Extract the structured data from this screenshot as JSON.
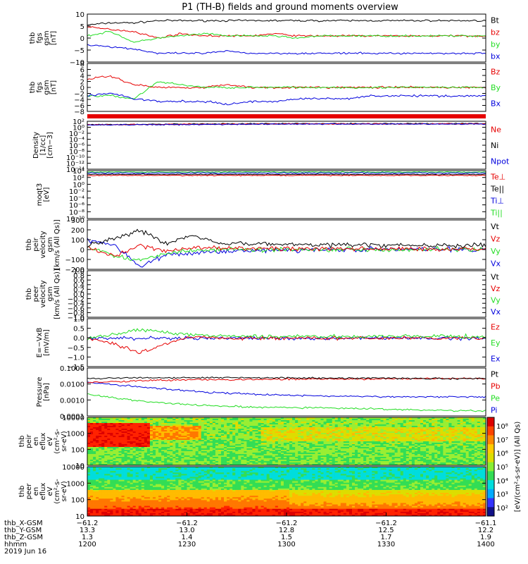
{
  "title": "P1 (TH-B) fields and ground moments overview",
  "colors": {
    "black": "#000000",
    "red": "#e60000",
    "green": "#22dd22",
    "blue": "#0000dd"
  },
  "chart_data": [
    {
      "type": "line",
      "ylabel": [
        "thb",
        "fgs",
        "gsm",
        "[nT]"
      ],
      "yticks": [
        "10",
        "5",
        "0",
        "−5",
        "−10"
      ],
      "ylim": [
        -11,
        11
      ],
      "series": [
        {
          "name": "Bt",
          "color": "black",
          "values": [
            6,
            7,
            7,
            8,
            8,
            8,
            8,
            8,
            8,
            8,
            8,
            8,
            8,
            8,
            8,
            8,
            8,
            8
          ]
        },
        {
          "name": "bz",
          "color": "red",
          "values": [
            5,
            4,
            3,
            0,
            2,
            1,
            1,
            1,
            2,
            1,
            1,
            1,
            1,
            1,
            1,
            1,
            1,
            1
          ]
        },
        {
          "name": "by",
          "color": "green",
          "values": [
            1,
            3,
            -2,
            0,
            1,
            2,
            1,
            1,
            1,
            0,
            1,
            1,
            1,
            1,
            1,
            1,
            1,
            1
          ]
        },
        {
          "name": "bx",
          "color": "blue",
          "values": [
            -3,
            -4,
            -5,
            -7,
            -7,
            -7,
            -6,
            -7,
            -7,
            -7,
            -7,
            -7,
            -7,
            -7,
            -7,
            -7,
            -7,
            -7
          ]
        }
      ]
    },
    {
      "type": "line",
      "ylabel": [
        "thb",
        "fgs",
        "gsm",
        "[nT]"
      ],
      "yticks": [
        "8",
        "6",
        "4",
        "2",
        "0",
        "−2",
        "−4",
        "−6",
        "−8"
      ],
      "ylim": [
        -8.5,
        8.5
      ],
      "series": [
        {
          "name": "Bz",
          "color": "red",
          "values": [
            3,
            4,
            1,
            0,
            0,
            0,
            1,
            0,
            0,
            0,
            0,
            0,
            0,
            0,
            0,
            0,
            0,
            0
          ]
        },
        {
          "name": "By",
          "color": "green",
          "values": [
            -3,
            -3,
            -4,
            2,
            1,
            0,
            0,
            0,
            0,
            0,
            0,
            0,
            0,
            0,
            0,
            0,
            0,
            0
          ]
        },
        {
          "name": "Bx",
          "color": "blue",
          "values": [
            -3,
            -2,
            -4,
            -5,
            -5,
            -5,
            -6,
            -5,
            -5,
            -4,
            -4,
            -4,
            -3,
            -3,
            -3,
            -3,
            -3,
            -3
          ]
        }
      ]
    },
    {
      "type": "line",
      "ylabel": [
        "Density",
        "[1/cc]",
        "[cm−3]"
      ],
      "yticks": [
        "10²",
        "10⁰",
        "10⁻²",
        "10⁻⁴",
        "10⁻⁶",
        "10⁻⁸",
        "10⁻¹⁰",
        "10⁻¹²",
        "10⁻¹⁴"
      ],
      "log": true,
      "series": [
        {
          "name": "Ne",
          "color": "red"
        },
        {
          "name": "Ni",
          "color": "black"
        },
        {
          "name": "Npot",
          "color": "blue"
        }
      ]
    },
    {
      "type": "line",
      "ylabel": [
        "moqt3",
        "[eV]"
      ],
      "yticks": [
        "10⁴",
        "10²",
        "10⁰",
        "10⁻²",
        "10⁻⁴",
        "10⁻⁶",
        "10⁻⁸",
        "10⁻¹⁰"
      ],
      "log": true,
      "series": [
        {
          "name": "Te⊥",
          "color": "red"
        },
        {
          "name": "Te||",
          "color": "black"
        },
        {
          "name": "Ti⊥",
          "color": "blue"
        },
        {
          "name": "Ti||",
          "color": "green"
        }
      ]
    },
    {
      "type": "line",
      "ylabel": [
        "thb",
        "peir",
        "velocity",
        "gsm",
        "[km/s (All Qs)]"
      ],
      "yticks": [
        "300",
        "200",
        "100",
        "0",
        "−100",
        "−200"
      ],
      "ylim": [
        -210,
        310
      ],
      "series": [
        {
          "name": "Vt",
          "color": "black"
        },
        {
          "name": "Vz",
          "color": "red"
        },
        {
          "name": "Vy",
          "color": "green"
        },
        {
          "name": "Vx",
          "color": "blue"
        }
      ]
    },
    {
      "type": "line",
      "ylabel": [
        "thb",
        "peer",
        "velocity",
        "gsm",
        "[km/s (All Qs)]"
      ],
      "yticks": [
        "1.0",
        "0.8",
        "0.6",
        "0.4",
        "0.2",
        "0.0",
        "−0.2",
        "−0.4",
        "−0.6",
        "−0.8",
        "−1.0"
      ],
      "series": [
        {
          "name": "Vt",
          "color": "black"
        },
        {
          "name": "Vz",
          "color": "red"
        },
        {
          "name": "Vy",
          "color": "green"
        },
        {
          "name": "Vx",
          "color": "blue"
        }
      ]
    },
    {
      "type": "line",
      "ylabel": [
        "E=−VxB",
        "[mV/m]"
      ],
      "yticks": [
        "1.0",
        "0.5",
        "0.0",
        "−0.5",
        "−1.0",
        "−1.5"
      ],
      "series": [
        {
          "name": "Ez",
          "color": "red"
        },
        {
          "name": "Ey",
          "color": "green"
        },
        {
          "name": "Ex",
          "color": "blue"
        }
      ]
    },
    {
      "type": "line",
      "ylabel": [
        "Pressure",
        "[nPa]"
      ],
      "yticks": [
        "0.1000",
        "0.0100",
        "0.0010",
        "0.0001"
      ],
      "log": true,
      "series": [
        {
          "name": "Pt",
          "color": "black"
        },
        {
          "name": "Pb",
          "color": "red"
        },
        {
          "name": "Pe",
          "color": "green"
        },
        {
          "name": "Pi",
          "color": "blue"
        }
      ]
    },
    {
      "type": "heatmap",
      "ylabel": [
        "thb",
        "peir",
        "en",
        "eflux",
        "eV",
        "(cm²-s-",
        "sr-eV)"
      ],
      "yticks": [
        "10000",
        "1000",
        "100",
        "10"
      ]
    },
    {
      "type": "heatmap",
      "ylabel": [
        "thb",
        "peer",
        "en",
        "eflux",
        "eV",
        "(cm²-s-",
        "sr-eV)"
      ],
      "yticks": [
        "10000",
        "1000",
        "100",
        "10"
      ]
    }
  ],
  "colorbar": {
    "ticks": [
      "10⁸",
      "10⁷",
      "10⁶",
      "10⁵",
      "10⁴",
      "10³",
      "10²"
    ],
    "label": "[eV/(cm²-s-sr-eV)] (All Qs)"
  },
  "xaxis": {
    "row_labels": [
      "thb_X-GSM",
      "thb_Y-GSM",
      "thb_Z-GSM",
      "hhmm",
      "2019 Jun 16"
    ],
    "columns": [
      [
        "−61.2",
        "13.3",
        "1.3",
        "1200"
      ],
      [
        "−61.2",
        "13.0",
        "1.4",
        "1230"
      ],
      [
        "−61.2",
        "12.8",
        "1.5",
        "1300"
      ],
      [
        "−61.2",
        "12.5",
        "1.7",
        "1330"
      ],
      [
        "−61.1",
        "12.2",
        "1.9",
        "1400"
      ]
    ]
  }
}
